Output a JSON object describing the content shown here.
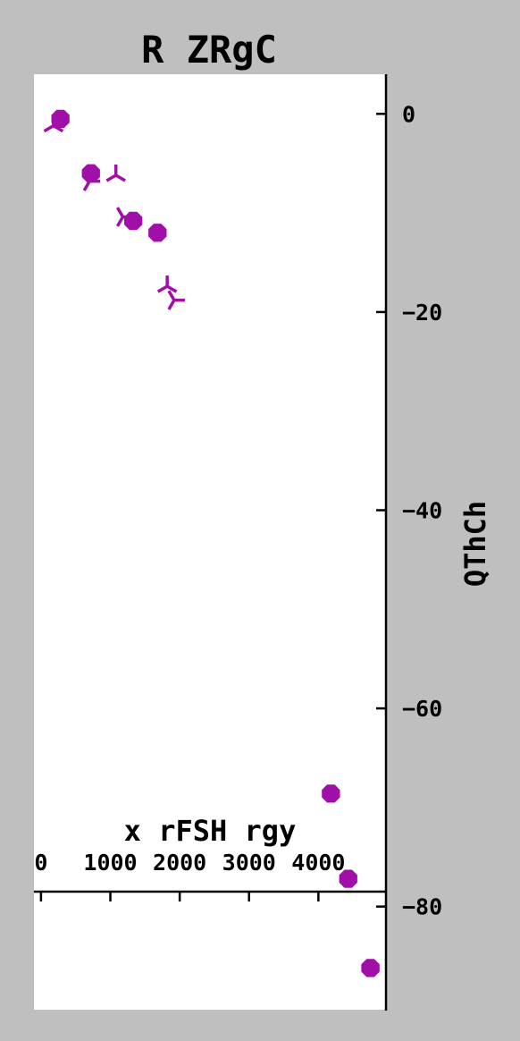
{
  "chart_data": {
    "type": "scatter",
    "title": "R ZRgC",
    "xlabel": "x rFSH rgy",
    "ylabel": "QThCh",
    "xlim": [
      -50,
      5000
    ],
    "ylim": [
      -90.5,
      4
    ],
    "x_ticks": [
      0,
      1000,
      2000,
      3000,
      4000
    ],
    "x_tick_labels": [
      "0",
      "1000",
      "2000",
      "3000",
      "4000"
    ],
    "y_ticks": [
      0,
      -20,
      -40,
      -60,
      -80
    ],
    "y_tick_labels": [
      "0",
      "−20",
      "−40",
      "−60",
      "−80"
    ],
    "x_axis_position": "inside near bottom",
    "y_axis_position": "right",
    "grid": false,
    "legend": "none",
    "series": [
      {
        "marker": "circle",
        "color": "#a010a8",
        "points": [
          {
            "x": 280,
            "y": -0.5
          },
          {
            "x": 720,
            "y": -6
          },
          {
            "x": 1330,
            "y": -10.8
          },
          {
            "x": 1680,
            "y": -12
          },
          {
            "x": 4180,
            "y": -68.6
          },
          {
            "x": 4430,
            "y": -77.2
          },
          {
            "x": 4750,
            "y": -86.2
          }
        ]
      },
      {
        "marker": "tri",
        "color": "#a010a8",
        "points": [
          {
            "x": 180,
            "y": -1.2
          },
          {
            "x": 700,
            "y": -6.8
          },
          {
            "x": 1080,
            "y": -6.2
          },
          {
            "x": 1180,
            "y": -10.4
          },
          {
            "x": 1820,
            "y": -17.4
          },
          {
            "x": 1920,
            "y": -18.8
          }
        ]
      }
    ]
  }
}
